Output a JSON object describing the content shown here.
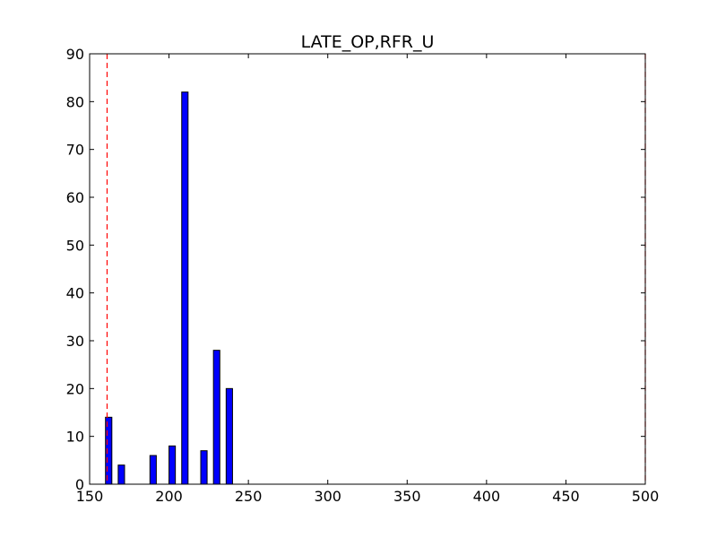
{
  "chart_data": {
    "type": "bar",
    "title": "LATE_OP,RFR_U",
    "xlabel": "",
    "ylabel": "",
    "xlim": [
      150,
      500
    ],
    "ylim": [
      0,
      90
    ],
    "xticks": [
      150,
      200,
      250,
      300,
      350,
      400,
      450,
      500
    ],
    "yticks": [
      0,
      10,
      20,
      30,
      40,
      50,
      60,
      70,
      80,
      90
    ],
    "bar_width": 4,
    "bars": [
      {
        "x": 160,
        "value": 14
      },
      {
        "x": 168,
        "value": 4
      },
      {
        "x": 188,
        "value": 6
      },
      {
        "x": 200,
        "value": 8
      },
      {
        "x": 208,
        "value": 82
      },
      {
        "x": 220,
        "value": 7
      },
      {
        "x": 228,
        "value": 28
      },
      {
        "x": 236,
        "value": 20
      }
    ],
    "reference_lines": [
      {
        "x": 161,
        "style": "dashed",
        "color": "#ff0000"
      },
      {
        "x": 500,
        "style": "dashed",
        "color": "#ff0000"
      }
    ],
    "bar_color": "#0000ff",
    "grid": false
  }
}
